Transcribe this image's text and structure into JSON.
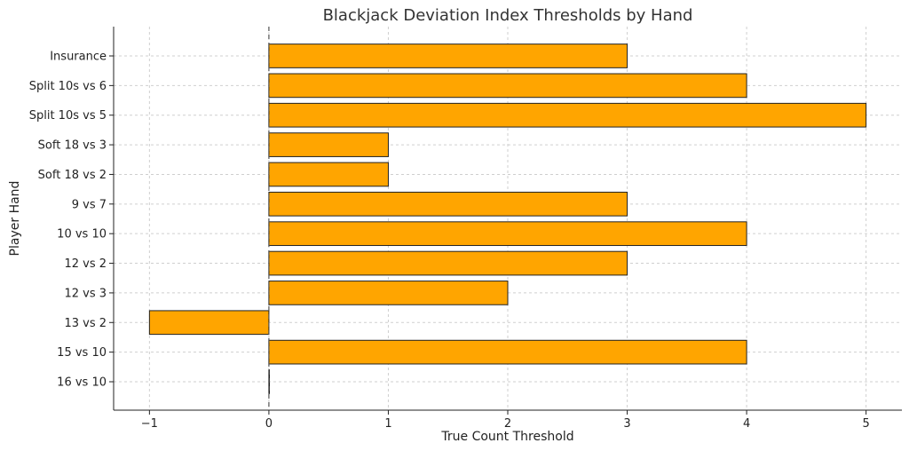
{
  "chart_data": {
    "type": "bar",
    "orientation": "horizontal",
    "title": "Blackjack Deviation Index Thresholds by Hand",
    "xlabel": "True Count Threshold",
    "ylabel": "Player Hand",
    "categories": [
      "16 vs 10",
      "15 vs 10",
      "13 vs 2",
      "12 vs 3",
      "12 vs 2",
      "10 vs 10",
      "9 vs 7",
      "Soft 18 vs 2",
      "Soft 18 vs 3",
      "Split 10s vs 5",
      "Split 10s vs 6",
      "Insurance"
    ],
    "values": [
      0,
      4,
      -1,
      2,
      3,
      4,
      3,
      1,
      1,
      5,
      4,
      3
    ],
    "xlim": [
      -1.3,
      5.3
    ],
    "xticks": [
      -1,
      0,
      1,
      2,
      3,
      4,
      5
    ],
    "xtick_labels": [
      "−1",
      "0",
      "1",
      "2",
      "3",
      "4",
      "5"
    ],
    "bar_color": "#FFA500",
    "edge_color": "#222222",
    "grid": true,
    "reference_line": 0
  }
}
